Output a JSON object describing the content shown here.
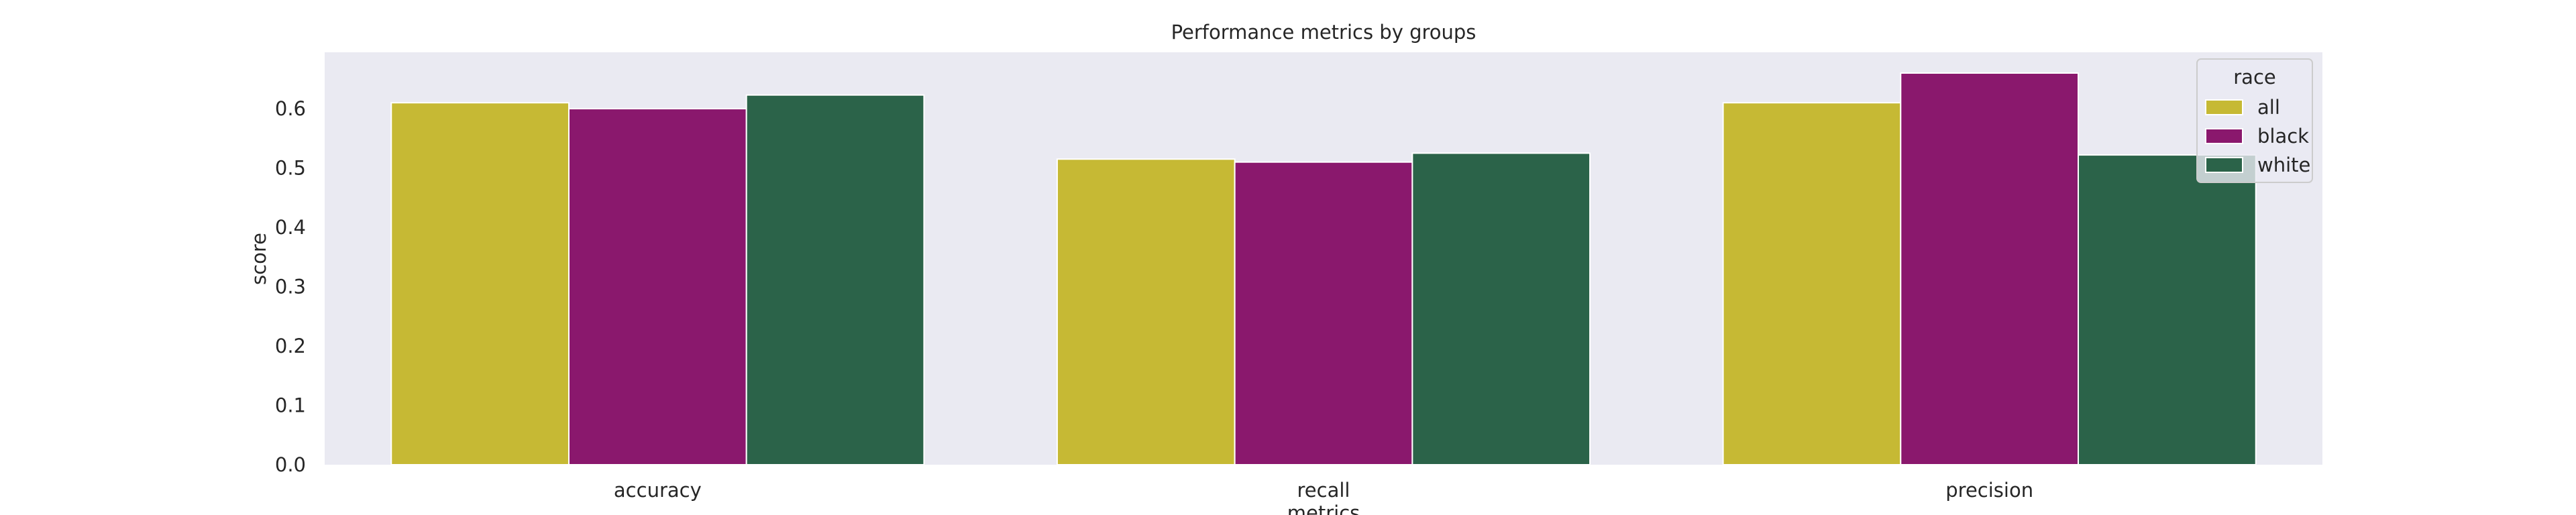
{
  "chart_data": {
    "type": "bar",
    "title": "Performance metrics by groups",
    "xlabel": "metrics",
    "ylabel": "score",
    "categories": [
      "accuracy",
      "recall",
      "precision"
    ],
    "series": [
      {
        "name": "all",
        "values": [
          0.61,
          0.515,
          0.61
        ],
        "color": "#c6b934"
      },
      {
        "name": "black",
        "values": [
          0.6,
          0.51,
          0.66
        ],
        "color": "#8a186d"
      },
      {
        "name": "white",
        "values": [
          0.623,
          0.525,
          0.522
        ],
        "color": "#2b6349"
      }
    ],
    "ylim": [
      0,
      0.695
    ],
    "yticks": [
      "0.0",
      "0.1",
      "0.2",
      "0.3",
      "0.4",
      "0.5",
      "0.6"
    ],
    "grid": false,
    "background": "#eaeaf2",
    "legend": {
      "title": "race",
      "position": "top-right"
    }
  }
}
